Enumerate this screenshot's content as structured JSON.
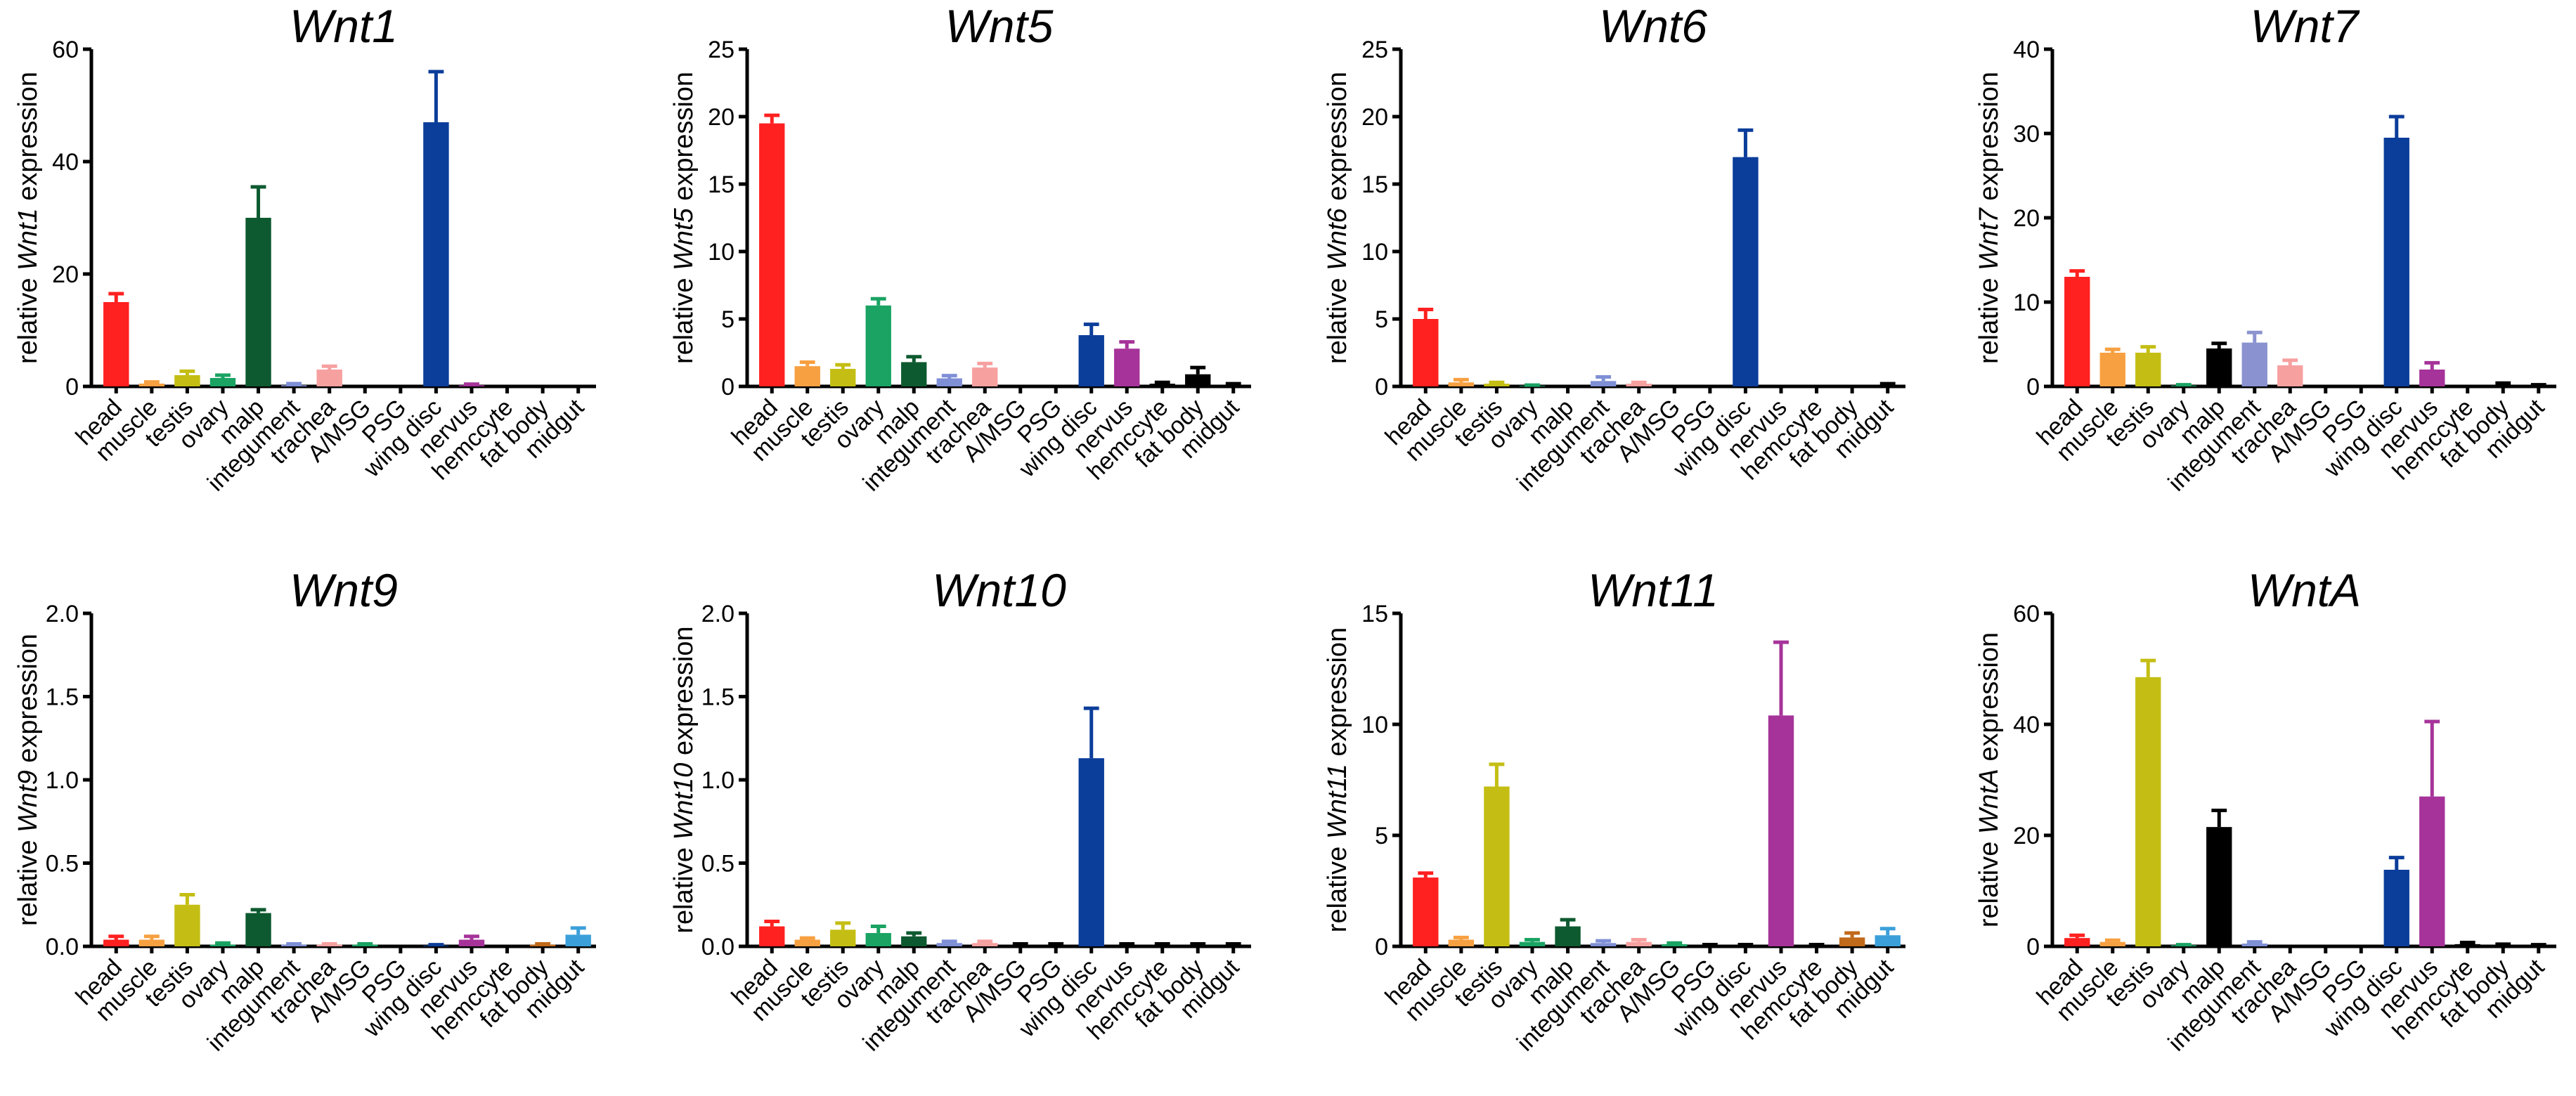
{
  "figure": {
    "panel_count": 8
  },
  "chart_data": [
    {
      "type": "bar",
      "gene": "Wnt1",
      "title": "Wnt1",
      "ylabel": {
        "prefix": "relative ",
        "gene": "Wnt1",
        "suffix": " expression"
      },
      "ylim": [
        0,
        60
      ],
      "yticks": [
        "0",
        "20",
        "40",
        "60"
      ],
      "ytick_values": [
        0,
        20,
        40,
        60
      ],
      "categories": [
        "head",
        "muscle",
        "testis",
        "ovary",
        "malp",
        "integument",
        "trachea",
        "A/MSG",
        "PSG",
        "wing disc",
        "nervus",
        "hemccyte",
        "fat body",
        "midgut"
      ],
      "values": [
        15,
        0.5,
        2,
        1.5,
        30,
        0.2,
        3,
        0,
        0,
        47,
        0.2,
        0,
        0,
        0
      ],
      "errors": [
        1.5,
        0.3,
        0.7,
        0.5,
        5.5,
        0.3,
        0.6,
        0,
        0,
        9,
        0.2,
        0,
        0,
        0
      ],
      "colors": [
        "#FF2020",
        "#F7A041",
        "#C4BE14",
        "#1AA363",
        "#0E5A30",
        "#7F8FD6",
        "#F7A0A0",
        "#B0B0B0",
        "#B0B0B0",
        "#0B3D9A",
        "#A63399",
        "#6E3A12",
        "#C06A1A",
        "#3BA0DA"
      ]
    },
    {
      "type": "bar",
      "gene": "Wnt5",
      "title": "Wnt5",
      "ylabel": {
        "prefix": "relative ",
        "gene": "Wnt5",
        "suffix": " expression"
      },
      "ylim": [
        0,
        25
      ],
      "yticks": [
        "0",
        "5",
        "10",
        "15",
        "20",
        "25"
      ],
      "ytick_values": [
        0,
        5,
        10,
        15,
        20,
        25
      ],
      "categories": [
        "head",
        "muscle",
        "testis",
        "ovary",
        "malp",
        "integument",
        "trachea",
        "A/MSG",
        "PSG",
        "wing disc",
        "nervus",
        "hemccyte",
        "fat body",
        "midgut"
      ],
      "values": [
        19.5,
        1.5,
        1.3,
        6,
        1.8,
        0.6,
        1.4,
        0,
        0,
        3.8,
        2.8,
        0.2,
        0.9,
        0.1
      ],
      "errors": [
        0.6,
        0.3,
        0.3,
        0.5,
        0.4,
        0.2,
        0.3,
        0,
        0,
        0.8,
        0.5,
        0.1,
        0.5,
        0.1
      ],
      "colors": [
        "#FF2020",
        "#F7A041",
        "#C4BE14",
        "#1AA363",
        "#0E5A30",
        "#7F8FD6",
        "#F7A0A0",
        "#B0B0B0",
        "#B0B0B0",
        "#0B3D9A",
        "#A63399",
        "#000000",
        "#000000",
        "#000000"
      ]
    },
    {
      "type": "bar",
      "gene": "Wnt6",
      "title": "Wnt6",
      "ylabel": {
        "prefix": "relative ",
        "gene": "Wnt6",
        "suffix": " expression"
      },
      "ylim": [
        0,
        25
      ],
      "yticks": [
        "0",
        "5",
        "10",
        "15",
        "20",
        "25"
      ],
      "ytick_values": [
        0,
        5,
        10,
        15,
        20,
        25
      ],
      "categories": [
        "head",
        "muscle",
        "testis",
        "ovary",
        "malp",
        "integument",
        "trachea",
        "A/MSG",
        "PSG",
        "wing disc",
        "nervus",
        "hemccyte",
        "fat body",
        "midgut"
      ],
      "values": [
        5,
        0.3,
        0.2,
        0.05,
        0,
        0.4,
        0.2,
        0,
        0,
        17,
        0,
        0,
        0,
        0.1
      ],
      "errors": [
        0.7,
        0.2,
        0.1,
        0.05,
        0,
        0.3,
        0.1,
        0,
        0,
        2,
        0,
        0,
        0,
        0.1
      ],
      "colors": [
        "#FF2020",
        "#F7A041",
        "#C4BE14",
        "#1AA363",
        "#0E5A30",
        "#7F8FD6",
        "#F7A0A0",
        "#B0B0B0",
        "#B0B0B0",
        "#0B3D9A",
        "#A63399",
        "#000000",
        "#000000",
        "#000000"
      ]
    },
    {
      "type": "bar",
      "gene": "Wnt7",
      "title": "Wnt7",
      "ylabel": {
        "prefix": "relative ",
        "gene": "Wnt7",
        "suffix": " expression"
      },
      "ylim": [
        0,
        40
      ],
      "yticks": [
        "0",
        "10",
        "20",
        "30",
        "40"
      ],
      "ytick_values": [
        0,
        10,
        20,
        30,
        40
      ],
      "categories": [
        "head",
        "muscle",
        "testis",
        "ovary",
        "malp",
        "integument",
        "trachea",
        "A/MSG",
        "PSG",
        "wing disc",
        "nervus",
        "hemccyte",
        "fat body",
        "midgut"
      ],
      "values": [
        13,
        4,
        4,
        0.1,
        4.5,
        5.2,
        2.5,
        0,
        0,
        29.5,
        2,
        0,
        0.2,
        0.1
      ],
      "errors": [
        0.7,
        0.4,
        0.7,
        0.1,
        0.6,
        1.2,
        0.6,
        0,
        0,
        2.5,
        0.8,
        0,
        0.2,
        0.1
      ],
      "colors": [
        "#FF2020",
        "#F7A041",
        "#C4BE14",
        "#1AA363",
        "#000000",
        "#8A93CF",
        "#F7A0A0",
        "#B0B0B0",
        "#B0B0B0",
        "#0B3D9A",
        "#A63399",
        "#000000",
        "#000000",
        "#000000"
      ]
    },
    {
      "type": "bar",
      "gene": "Wnt9",
      "title": "Wnt9",
      "ylabel": {
        "prefix": "relative ",
        "gene": "Wnt9",
        "suffix": " expression"
      },
      "ylim": [
        0,
        2
      ],
      "yticks": [
        "0.0",
        "0.5",
        "1.0",
        "1.5",
        "2.0"
      ],
      "ytick_values": [
        0,
        0.5,
        1,
        1.5,
        2
      ],
      "categories": [
        "head",
        "muscle",
        "testis",
        "ovary",
        "malp",
        "integument",
        "trachea",
        "A/MSG",
        "PSG",
        "wing disc",
        "nervus",
        "hemccyte",
        "fat body",
        "midgut"
      ],
      "values": [
        0.04,
        0.04,
        0.25,
        0.01,
        0.2,
        0.01,
        0.01,
        0.01,
        0,
        0.005,
        0.04,
        0,
        0.01,
        0.07
      ],
      "errors": [
        0.02,
        0.02,
        0.06,
        0.01,
        0.02,
        0.005,
        0.005,
        0.005,
        0,
        0.005,
        0.02,
        0,
        0.005,
        0.04
      ],
      "colors": [
        "#FF2020",
        "#F7A041",
        "#C4BE14",
        "#1AA363",
        "#0E5A30",
        "#7F8FD6",
        "#F7A0A0",
        "#1AA363",
        "#B0B0B0",
        "#0B3D9A",
        "#A63399",
        "#000000",
        "#C06A1A",
        "#3BA0DA"
      ]
    },
    {
      "type": "bar",
      "gene": "Wnt10",
      "title": "Wnt10",
      "ylabel": {
        "prefix": "relative ",
        "gene": "Wnt10",
        "suffix": " expression"
      },
      "ylim": [
        0,
        2
      ],
      "yticks": [
        "0.0",
        "0.5",
        "1.0",
        "1.5",
        "2.0"
      ],
      "ytick_values": [
        0,
        0.5,
        1,
        1.5,
        2
      ],
      "categories": [
        "head",
        "muscle",
        "testis",
        "ovary",
        "malp",
        "integument",
        "trachea",
        "A/MSG",
        "PSG",
        "wing disc",
        "nervus",
        "hemccyte",
        "fat body",
        "midgut"
      ],
      "values": [
        0.12,
        0.04,
        0.1,
        0.08,
        0.06,
        0.02,
        0.02,
        0.01,
        0.01,
        1.13,
        0.01,
        0.01,
        0.01,
        0.01
      ],
      "errors": [
        0.03,
        0.01,
        0.04,
        0.04,
        0.02,
        0.01,
        0.01,
        0.005,
        0.005,
        0.3,
        0.005,
        0.005,
        0.005,
        0.005
      ],
      "colors": [
        "#FF2020",
        "#F7A041",
        "#C4BE14",
        "#1AA363",
        "#0E5A30",
        "#7F8FD6",
        "#F7A0A0",
        "#000000",
        "#000000",
        "#0B3D9A",
        "#000000",
        "#000000",
        "#000000",
        "#000000"
      ]
    },
    {
      "type": "bar",
      "gene": "Wnt11",
      "title": "Wnt11",
      "ylabel": {
        "prefix": "relative ",
        "gene": "Wnt11",
        "suffix": " expression"
      },
      "ylim": [
        0,
        15
      ],
      "yticks": [
        "0",
        "5",
        "10",
        "15"
      ],
      "ytick_values": [
        0,
        5,
        10,
        15
      ],
      "categories": [
        "head",
        "muscle",
        "testis",
        "ovary",
        "malp",
        "integument",
        "trachea",
        "A/MSG",
        "PSG",
        "wing disc",
        "nervus",
        "hemccyte",
        "fat body",
        "midgut"
      ],
      "values": [
        3.1,
        0.3,
        7.2,
        0.2,
        0.9,
        0.15,
        0.2,
        0.1,
        0.05,
        0.05,
        10.4,
        0.05,
        0.4,
        0.5
      ],
      "errors": [
        0.2,
        0.1,
        1.0,
        0.1,
        0.3,
        0.1,
        0.1,
        0.05,
        0.03,
        0.03,
        3.3,
        0.03,
        0.2,
        0.3
      ],
      "colors": [
        "#FF2020",
        "#F7A041",
        "#C4BE14",
        "#1AA363",
        "#0E5A30",
        "#7F8FD6",
        "#F7A0A0",
        "#1AA363",
        "#000000",
        "#000000",
        "#A63399",
        "#000000",
        "#C06A1A",
        "#3BA0DA"
      ]
    },
    {
      "type": "bar",
      "gene": "WntA",
      "title": "WntA",
      "ylabel": {
        "prefix": "relative ",
        "gene": "WntA",
        "suffix": " expression"
      },
      "ylim": [
        0,
        60
      ],
      "yticks": [
        "0",
        "20",
        "40",
        "60"
      ],
      "ytick_values": [
        0,
        20,
        40,
        60
      ],
      "categories": [
        "head",
        "muscle",
        "testis",
        "ovary",
        "malp",
        "integument",
        "trachea",
        "A/MSG",
        "PSG",
        "wing disc",
        "nervus",
        "hemccyte",
        "fat body",
        "midgut"
      ],
      "values": [
        1.5,
        0.8,
        48.5,
        0.2,
        21.5,
        0.5,
        0,
        0,
        0,
        13.8,
        27,
        0.4,
        0.2,
        0.2
      ],
      "errors": [
        0.5,
        0.3,
        3,
        0.1,
        3,
        0.3,
        0,
        0,
        0,
        2.2,
        13.5,
        0.3,
        0.2,
        0.1
      ],
      "colors": [
        "#FF2020",
        "#F7A041",
        "#C4BE14",
        "#1AA363",
        "#000000",
        "#7F8FD6",
        "#F7A0A0",
        "#B0B0B0",
        "#B0B0B0",
        "#0B3D9A",
        "#A63399",
        "#000000",
        "#000000",
        "#000000"
      ]
    }
  ]
}
